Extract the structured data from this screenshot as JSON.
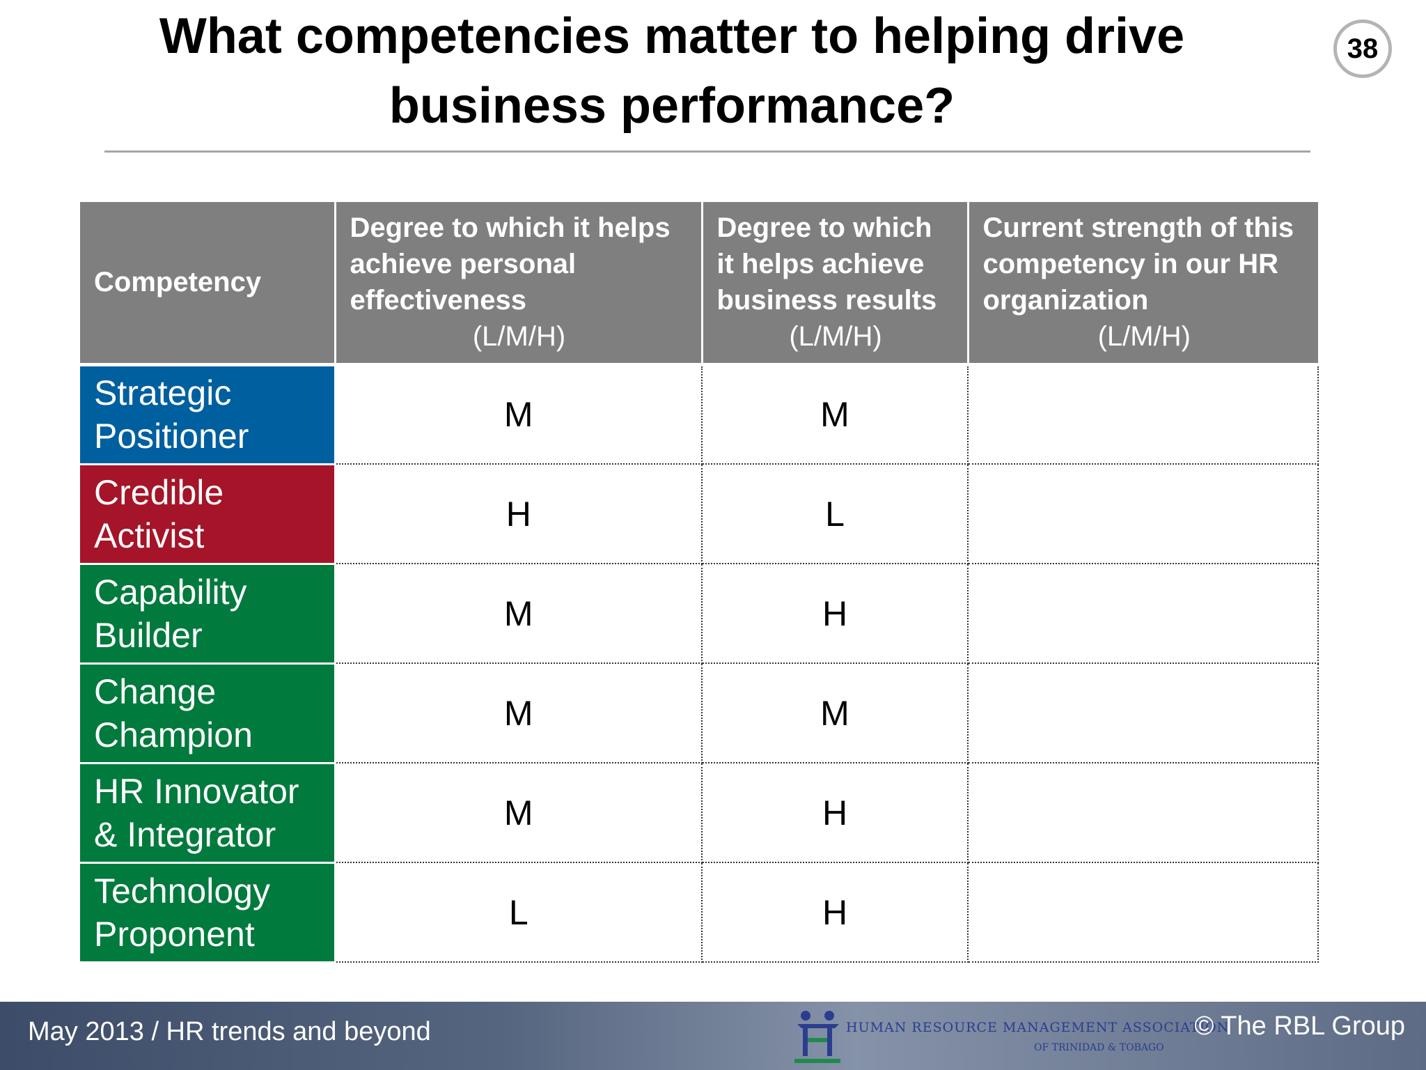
{
  "title": {
    "line1": "What competencies matter to helping drive",
    "line2": "business performance?"
  },
  "page_number": "38",
  "table": {
    "headers": [
      {
        "text": "Competency",
        "scale": ""
      },
      {
        "text": "Degree to which it helps achieve personal effectiveness",
        "scale": "(L/M/H)"
      },
      {
        "text": "Degree to which it helps achieve business results",
        "scale": "(L/M/H)"
      },
      {
        "text": "Current strength of this competency in our HR organization",
        "scale": "(L/M/H)"
      }
    ],
    "rows": [
      {
        "competency": "Strategic Positioner",
        "color": "#005f9f",
        "personal": "M",
        "business": "M",
        "strength": ""
      },
      {
        "competency": "Credible Activist",
        "color": "#a51428",
        "personal": "H",
        "business": "L",
        "strength": ""
      },
      {
        "competency": "Capability Builder",
        "color": "#007a3d",
        "personal": "M",
        "business": "H",
        "strength": ""
      },
      {
        "competency": "Change Champion",
        "color": "#007a3d",
        "personal": "M",
        "business": "M",
        "strength": ""
      },
      {
        "competency": "HR Innovator & Integrator",
        "color": "#007a3d",
        "personal": "M",
        "business": "H",
        "strength": ""
      },
      {
        "competency": "Technology Proponent",
        "color": "#007a3d",
        "personal": "L",
        "business": "H",
        "strength": ""
      }
    ]
  },
  "footer": {
    "left": "May 2013 / HR trends and beyond",
    "right": "© The RBL Group",
    "logo_name": "HUMAN RESOURCE MANAGEMENT ASSOCIATION",
    "logo_sub": "OF TRINIDAD & TOBAGO",
    "logo_abbr": "HRMATT"
  }
}
